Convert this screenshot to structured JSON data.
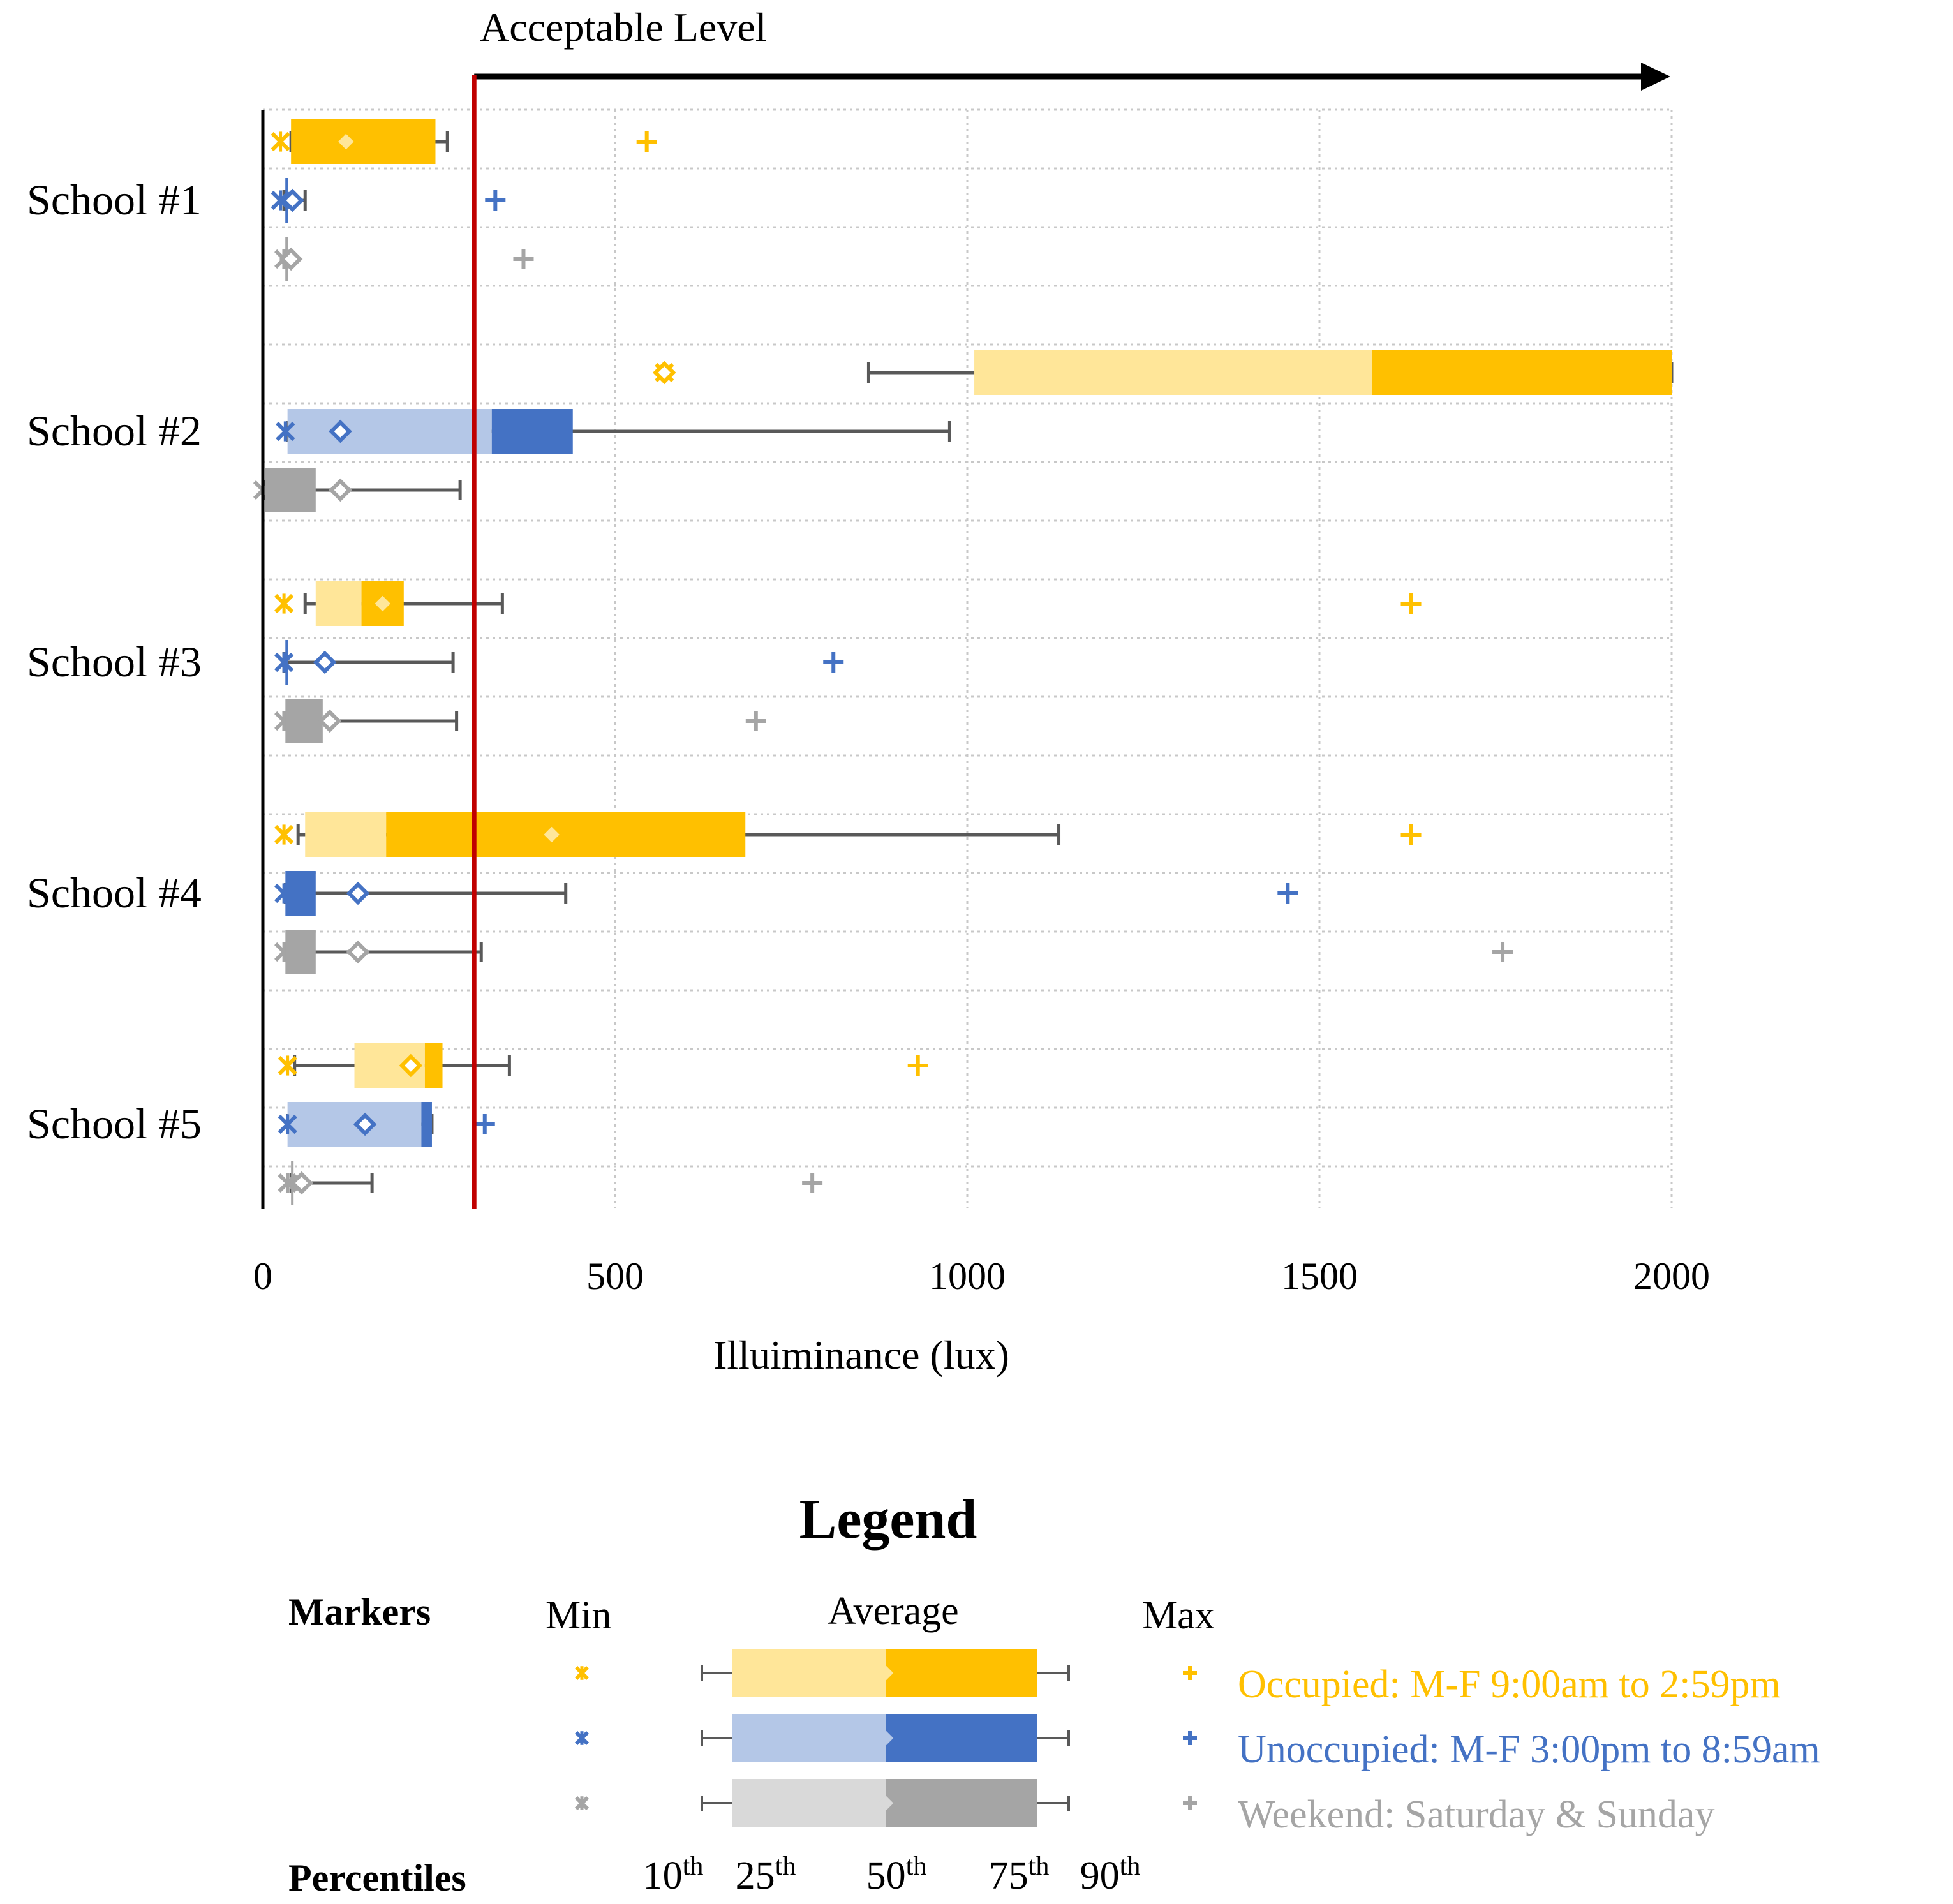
{
  "chart_data": {
    "type": "boxplot",
    "title": "",
    "xlabel": "Illuiminance (lux)",
    "ylabel": "",
    "xlim": [
      0,
      2000
    ],
    "xticks": [
      "0",
      "500",
      "1000",
      "1500",
      "2000"
    ],
    "xtick_values": [
      0,
      500,
      1000,
      1500,
      2000
    ],
    "grid": true,
    "threshold": {
      "value": 300,
      "label": "Acceptable Level",
      "color": "#c00000"
    },
    "categories": [
      "School #1",
      "School #2",
      "School #3",
      "School #4",
      "School #5"
    ],
    "series": [
      {
        "name": "Occupied: M-F 9:00am to 2:59pm",
        "color_light": "#ffe699",
        "color_dark": "#ffc000",
        "marker_color": "#ffc000"
      },
      {
        "name": "Unoccupied: M-F 3:00pm to 8:59am",
        "color_light": "#b4c7e7",
        "color_dark": "#4472c4",
        "marker_color": "#4472c4"
      },
      {
        "name": "Weekend: Saturday & Sunday",
        "color_light": "#d9d9d9",
        "color_dark": "#a5a5a5",
        "marker_color": "#a5a5a5"
      }
    ],
    "stats": [
      {
        "school": "School #1",
        "series": 0,
        "min": 25,
        "p10": 40,
        "p25": 40,
        "p50": 40,
        "p75": 245,
        "p90": 262,
        "avg": 118,
        "max": 545,
        "light": "#ffc000",
        "dark": "#ffc000"
      },
      {
        "school": "School #1",
        "series": 1,
        "min": 25,
        "p10": 30,
        "p25": 32,
        "p50": 32,
        "p75": 35,
        "p90": 60,
        "avg": 42,
        "max": 330
      },
      {
        "school": "School #1",
        "series": 2,
        "min": 30,
        "p10": 30,
        "p25": 32,
        "p50": 32,
        "p75": 33,
        "p90": 34,
        "avg": 40,
        "max": 370
      },
      {
        "school": "School #2",
        "series": 0,
        "min": 570,
        "p10": 860,
        "p25": 1010,
        "p50": 1575,
        "p75": 2000,
        "p90": 2000,
        "avg": 570,
        "max": null
      },
      {
        "school": "School #2",
        "series": 1,
        "min": 32,
        "p10": 35,
        "p25": 35,
        "p50": 325,
        "p75": 440,
        "p90": 975,
        "avg": 110,
        "max": null
      },
      {
        "school": "School #2",
        "series": 2,
        "min": 0,
        "p10": 3,
        "p25": 3,
        "p50": 3,
        "p75": 75,
        "p90": 280,
        "avg": 110,
        "max": null
      },
      {
        "school": "School #3",
        "series": 0,
        "min": 30,
        "p10": 60,
        "p25": 75,
        "p50": 140,
        "p75": 200,
        "p90": 340,
        "avg": 170,
        "max": 1630
      },
      {
        "school": "School #3",
        "series": 1,
        "min": 30,
        "p10": 30,
        "p25": 32,
        "p50": 33,
        "p75": 35,
        "p90": 270,
        "avg": 88,
        "max": 810
      },
      {
        "school": "School #3",
        "series": 2,
        "min": 30,
        "p10": 30,
        "p25": 32,
        "p50": 32,
        "p75": 85,
        "p90": 275,
        "avg": 95,
        "max": 700
      },
      {
        "school": "School #4",
        "series": 0,
        "min": 30,
        "p10": 50,
        "p25": 60,
        "p50": 175,
        "p75": 685,
        "p90": 1130,
        "avg": 410,
        "max": 1630
      },
      {
        "school": "School #4",
        "series": 1,
        "min": 30,
        "p10": 32,
        "p25": 32,
        "p50": 32,
        "p75": 75,
        "p90": 430,
        "avg": 135,
        "max": 1455
      },
      {
        "school": "School #4",
        "series": 2,
        "min": 30,
        "p10": 32,
        "p25": 32,
        "p50": 32,
        "p75": 75,
        "p90": 310,
        "avg": 135,
        "max": 1760
      },
      {
        "school": "School #5",
        "series": 0,
        "min": 35,
        "p10": 45,
        "p25": 130,
        "p50": 230,
        "p75": 255,
        "p90": 350,
        "avg": 210,
        "max": 930
      },
      {
        "school": "School #5",
        "series": 1,
        "min": 35,
        "p10": 35,
        "p25": 35,
        "p50": 225,
        "p75": 240,
        "p90": 240,
        "avg": 145,
        "max": 315
      },
      {
        "school": "School #5",
        "series": 2,
        "min": 35,
        "p10": 40,
        "p25": 40,
        "p50": 40,
        "p75": 40,
        "p90": 155,
        "avg": 55,
        "max": 780
      }
    ]
  },
  "legend": {
    "title": "Legend",
    "markers_label": "Markers",
    "min_label": "Min",
    "average_label": "Average",
    "max_label": "Max",
    "percentiles_label": "Percentiles",
    "percentiles": [
      {
        "num": "10",
        "sup": "th"
      },
      {
        "num": "25",
        "sup": "th"
      },
      {
        "num": "50",
        "sup": "th"
      },
      {
        "num": "75",
        "sup": "th"
      },
      {
        "num": "90",
        "sup": "th"
      }
    ],
    "rows": [
      {
        "label": "Occupied: M-F 9:00am to 2:59pm",
        "text_color": "#ffc000",
        "light": "#ffe699",
        "dark": "#ffc000"
      },
      {
        "label": "Unoccupied: M-F 3:00pm to 8:59am",
        "text_color": "#4472c4",
        "light": "#b4c7e7",
        "dark": "#4472c4"
      },
      {
        "label": "Weekend: Saturday & Sunday",
        "text_color": "#a5a5a5",
        "light": "#d9d9d9",
        "dark": "#a5a5a5"
      }
    ]
  }
}
